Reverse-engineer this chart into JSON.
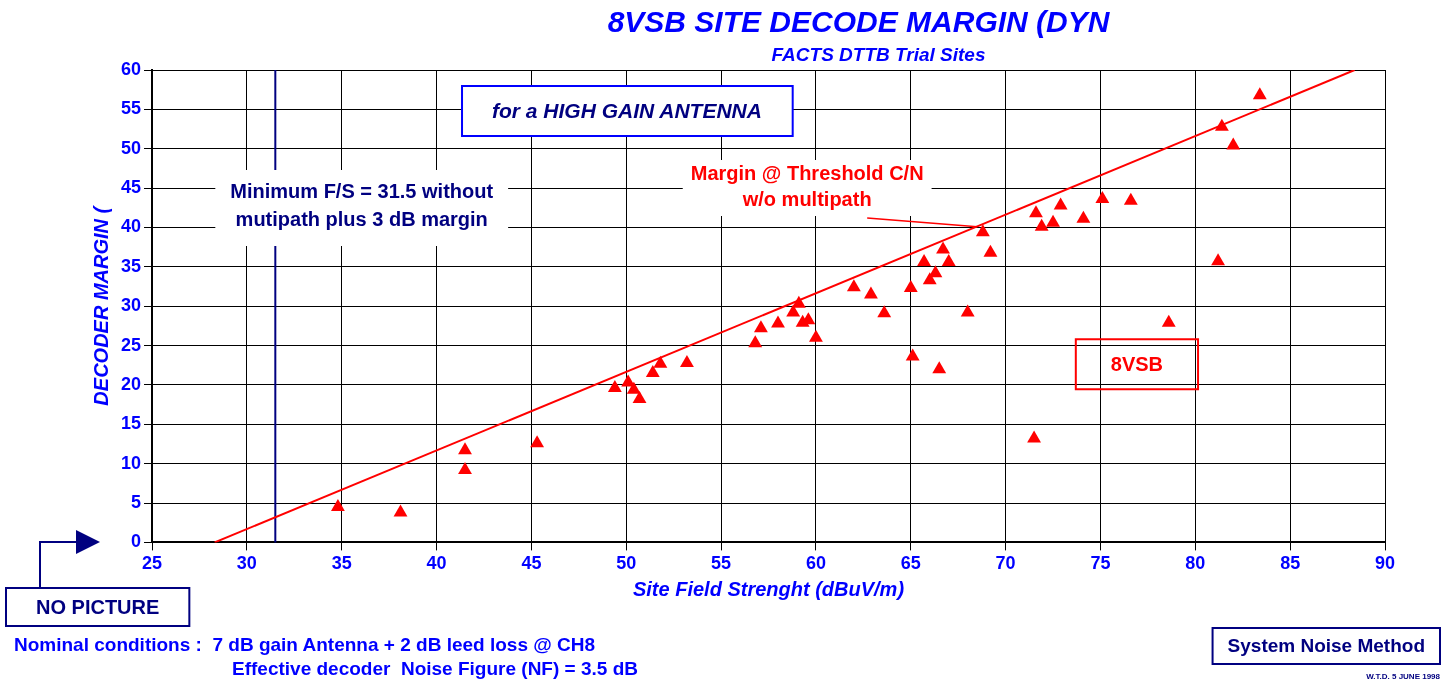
{
  "chart_data": {
    "type": "scatter",
    "title": "8VSB SITE DECODE MARGIN (DYN",
    "subtitle": "FACTS DTTB Trial Sites",
    "xlabel": "Site Field Strenght (dBuV/m)",
    "ylabel": "DECODER MARGIN (",
    "series": [
      {
        "marker": "triangle",
        "color": "#ff0000",
        "x": [
          34.8,
          38.1,
          41.5,
          41.5,
          45.3,
          49.4,
          50.1,
          50.4,
          50.7,
          51.4,
          51.8,
          53.2,
          56.8,
          57.1,
          58.0,
          58.8,
          59.1,
          59.3,
          59.6,
          60.0,
          62.0,
          62.9,
          63.6,
          65.0,
          65.1,
          65.7,
          66.0,
          66.3,
          66.5,
          66.7,
          67.0,
          68.0,
          68.8,
          69.2,
          71.5,
          71.6,
          71.9,
          72.5,
          72.9,
          74.1,
          75.1,
          76.6,
          78.6,
          81.2,
          81.4,
          82.0,
          83.4
        ],
        "values": [
          4.5,
          3.8,
          11.7,
          9.2,
          12.6,
          19.6,
          20.3,
          19.4,
          18.2,
          21.5,
          22.7,
          22.8,
          25.3,
          27.2,
          27.8,
          29.2,
          30.3,
          27.9,
          28.2,
          26.0,
          32.4,
          31.5,
          29.1,
          32.3,
          23.6,
          35.6,
          33.3,
          34.2,
          22.0,
          37.2,
          35.6,
          29.2,
          39.4,
          36.8,
          13.2,
          41.8,
          40.1,
          40.6,
          42.8,
          41.1,
          43.6,
          43.4,
          27.9,
          35.7,
          52.8,
          50.4,
          56.8
        ]
      },
      {
        "type": "line",
        "color": "#ff0000",
        "x": [
          28.3,
          88.4
        ],
        "values": [
          0,
          60
        ]
      }
    ],
    "xlim": [
      25,
      90
    ],
    "xticks": [
      25,
      30,
      35,
      40,
      45,
      50,
      55,
      60,
      65,
      70,
      75,
      80,
      85,
      90
    ],
    "ylim": [
      0,
      60
    ],
    "yticks": [
      0,
      5,
      10,
      15,
      20,
      25,
      30,
      35,
      40,
      45,
      50,
      55,
      60
    ],
    "ref_lines": [
      {
        "axis": "x",
        "value": 31.5,
        "label": "Minimum F/S = 31.5 without mutipath plus 3 dB margin",
        "color": "#000080"
      }
    ],
    "annotations": [
      "for a HIGH GAIN ANTENNA",
      {
        "text": "Margin @ Threshold C/N w/o multipath",
        "x": 68.5,
        "y": 40.1
      },
      "8VSB",
      "NO PICTURE",
      "Nominal conditions :  7 dB gain Antenna + 2 dB leed loss @ CH8",
      "Effective decoder  Noise Figure (NF) = 3.5 dB",
      "System Noise Method",
      "W.T.D. 5 JUNE 1998"
    ],
    "grid": true,
    "legend": false
  }
}
